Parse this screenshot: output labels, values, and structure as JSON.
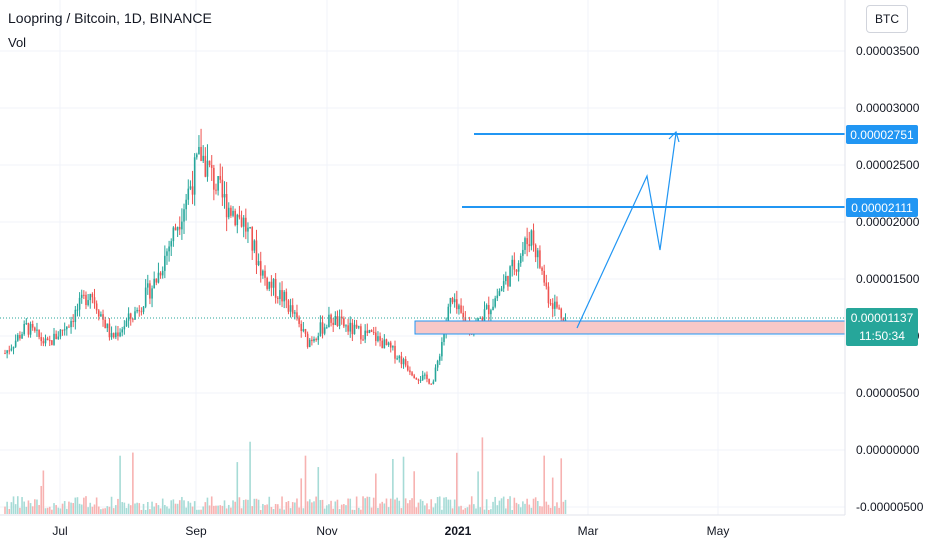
{
  "header": {
    "title": "Loopring / Bitcoin, 1D, BINANCE",
    "indicator": "Vol",
    "currency_button": "BTC"
  },
  "price_labels": {
    "target_high": "0.00002751",
    "target_mid": "0.00002111",
    "last_price": "0.00001137",
    "countdown": "11:50:34"
  },
  "colors": {
    "up": "#26a69a",
    "down": "#ef5350",
    "line": "#2196f3",
    "zone_fill": "#f8c8c8",
    "zone_stroke": "#2196f3",
    "label_bg_blue": "#2196f3",
    "label_bg_green": "#26a69a"
  },
  "chart_data": {
    "type": "candlestick",
    "title": "Loopring / Bitcoin, 1D, BINANCE",
    "y_axis_ticks": [
      "0.00003500",
      "0.00003000",
      "0.00002500",
      "0.00002000",
      "0.00001500",
      "0.00001000",
      "0.00000500",
      "0.00000000",
      "-0.00000500"
    ],
    "x_axis_ticks": [
      "Jul",
      "Sep",
      "Nov",
      "2021",
      "Mar",
      "May"
    ],
    "ylim": [
      -5e-06,
      3.8e-05
    ],
    "horizontal_levels": [
      2.751e-05,
      2.111e-05
    ],
    "support_zone": [
      9.3e-06,
      1.05e-05
    ],
    "projection_path": [
      [
        1.02e-05,
        "2021-02-26"
      ],
      [
        2.4e-05,
        "2021-04-06"
      ],
      [
        1.75e-05,
        "2021-04-13"
      ],
      [
        2.75e-05,
        "2021-04-23"
      ]
    ],
    "price_series": [
      {
        "date": "2020-06-10",
        "close": 8.5e-06
      },
      {
        "date": "2020-06-20",
        "close": 1.08e-05
      },
      {
        "date": "2020-06-30",
        "close": 9.2e-06
      },
      {
        "date": "2020-07-10",
        "close": 1.12e-05
      },
      {
        "date": "2020-07-20",
        "close": 1.4e-05
      },
      {
        "date": "2020-07-30",
        "close": 9.8e-06
      },
      {
        "date": "2020-08-10",
        "close": 1.2e-05
      },
      {
        "date": "2020-08-20",
        "close": 1.5e-05
      },
      {
        "date": "2020-08-30",
        "close": 2e-05
      },
      {
        "date": "2020-09-10",
        "close": 2.6e-05
      },
      {
        "date": "2020-09-20",
        "close": 2.2e-05
      },
      {
        "date": "2020-09-30",
        "close": 2e-05
      },
      {
        "date": "2020-10-10",
        "close": 1.5e-05
      },
      {
        "date": "2020-10-20",
        "close": 1.3e-05
      },
      {
        "date": "2020-10-30",
        "close": 9.5e-06
      },
      {
        "date": "2020-11-10",
        "close": 1.15e-05
      },
      {
        "date": "2020-11-20",
        "close": 1.05e-05
      },
      {
        "date": "2020-11-30",
        "close": 1e-05
      },
      {
        "date": "2020-12-10",
        "close": 8.5e-06
      },
      {
        "date": "2020-12-20",
        "close": 6.5e-06
      },
      {
        "date": "2020-12-28",
        "close": 6e-06
      },
      {
        "date": "2021-01-05",
        "close": 1.3e-05
      },
      {
        "date": "2021-01-15",
        "close": 1.05e-05
      },
      {
        "date": "2021-01-25",
        "close": 1.3e-05
      },
      {
        "date": "2021-02-05",
        "close": 1.65e-05
      },
      {
        "date": "2021-02-12",
        "close": 1.9e-05
      },
      {
        "date": "2021-02-20",
        "close": 1.35e-05
      },
      {
        "date": "2021-02-28",
        "close": 1.14e-05
      }
    ]
  }
}
